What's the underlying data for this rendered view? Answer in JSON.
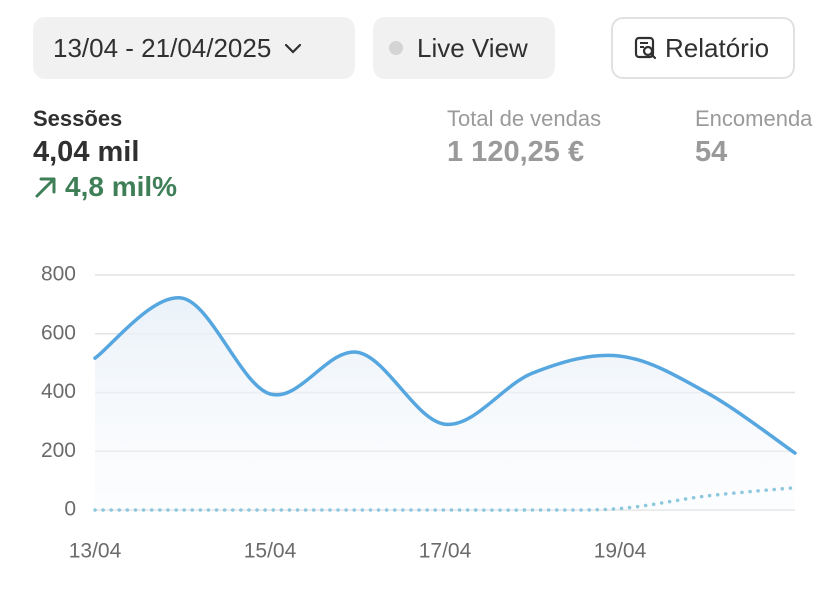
{
  "header": {
    "date_range": "13/04 - 21/04/2025",
    "live_view": "Live View",
    "report": "Relatório"
  },
  "metrics": [
    {
      "label": "Sessões",
      "value": "4,04 mil",
      "change": "4,8 mil%"
    },
    {
      "label": "Total de vendas",
      "value": "1 120,25 €"
    },
    {
      "label": "Encomenda",
      "value": "54"
    }
  ],
  "chart_data": {
    "type": "line",
    "categories": [
      "13/04",
      null,
      "15/04",
      null,
      "17/04",
      null,
      "19/04",
      null,
      null
    ],
    "series": [
      {
        "color": "#56a6e0",
        "area": true,
        "values": [
          517,
          721,
          395,
          537,
          292,
          466,
          524,
          398,
          194
        ]
      },
      {
        "color": "#8cc8dd",
        "style": "dotted",
        "values": [
          0,
          0,
          0,
          0,
          0,
          0,
          5,
          48,
          76
        ]
      }
    ],
    "ylim": [
      0,
      800
    ],
    "yticks": [
      0,
      200,
      400,
      600,
      800
    ],
    "grid": true
  }
}
